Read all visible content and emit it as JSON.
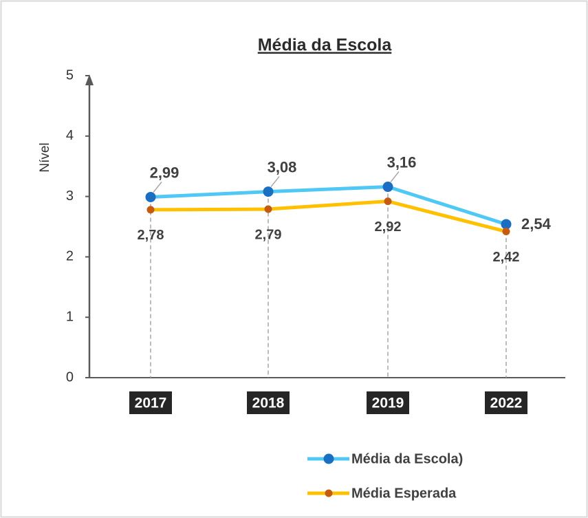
{
  "chart_data": {
    "type": "line",
    "title": "Média da Escola",
    "y_label": "Nível",
    "categories": [
      "2017",
      "2018",
      "2019",
      "2022"
    ],
    "series": [
      {
        "name": "Média da Escola)",
        "color": "#4fc8f5",
        "marker_color": "#1a6fc2",
        "values": [
          2.99,
          3.08,
          3.16,
          2.54
        ],
        "value_labels": [
          "2,99",
          "3,08",
          "3,16",
          "2,54"
        ]
      },
      {
        "name": "Média Esperada",
        "color": "#ffc000",
        "marker_color": "#c55a11",
        "values": [
          2.78,
          2.79,
          2.92,
          2.42
        ],
        "value_labels": [
          "2,78",
          "2,79",
          "2,92",
          "2,42"
        ]
      }
    ],
    "ylim": [
      0,
      5
    ],
    "yticks": [
      0,
      1,
      2,
      3,
      4,
      5
    ],
    "legend": "bottom"
  }
}
